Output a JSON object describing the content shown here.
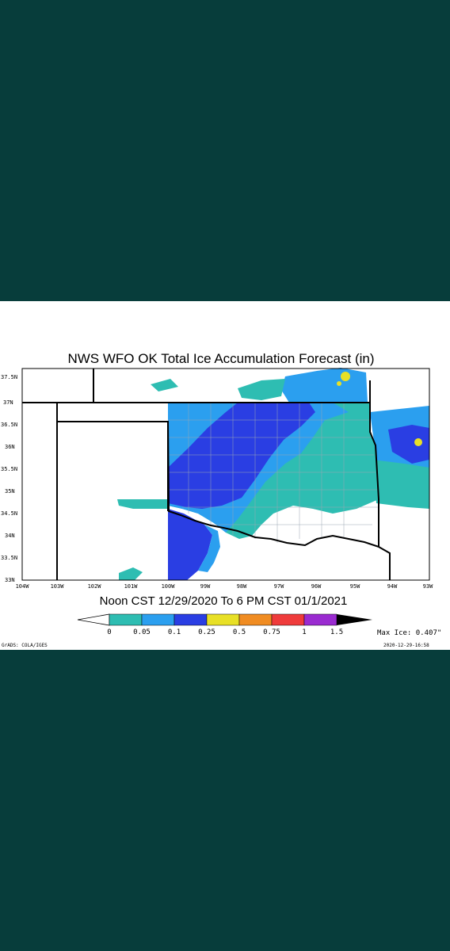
{
  "background_color": "#073d3b",
  "map": {
    "title": "NWS WFO OK Total Ice Accumulation Forecast (in)",
    "subtitle": "Noon CST 12/29/2020 To 6 PM CST 01/1/2021",
    "lat_labels": [
      "37.5N",
      "37N",
      "36.5N",
      "36N",
      "35.5N",
      "35N",
      "34.5N",
      "34N",
      "33.5N",
      "33N"
    ],
    "lon_labels": [
      "104W",
      "103W",
      "102W",
      "101W",
      "100W",
      "99W",
      "98W",
      "97W",
      "96W",
      "95W",
      "94W",
      "93W"
    ],
    "colorbar": {
      "labels": [
        "0",
        "0.05",
        "0.1",
        "0.25",
        "0.5",
        "0.75",
        "1",
        "1.5"
      ],
      "colors": [
        "#ffffff",
        "#2ebdb2",
        "#2b9fef",
        "#2a3ee3",
        "#e8e026",
        "#f08c22",
        "#ef3b3b",
        "#9a2bd0",
        "#000000"
      ]
    },
    "max_ice": "Max Ice: 0.407\"",
    "credit": "GrADS: COLA/IGES",
    "timestamp": "2020-12-29-16:58"
  }
}
